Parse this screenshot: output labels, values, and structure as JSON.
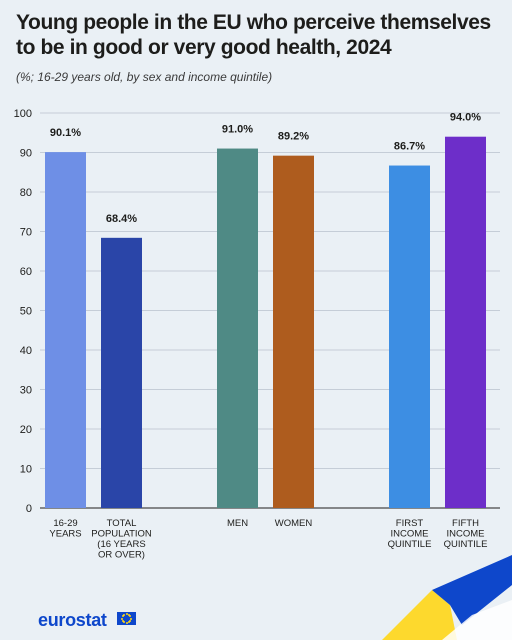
{
  "header": {
    "title": "Young people in the EU who perceive themselves to be in good or very good health, 2024",
    "subtitle": "(%; 16-29 years old, by sex and income quintile)"
  },
  "footer": {
    "logo_text": "eurostat"
  },
  "colors": {
    "gridline": "#b9c2cc",
    "axis": "#1d1d1b",
    "background": "#eaf0f5",
    "ribbon_yellow": "#ffd617",
    "ribbon_blue": "#0e47cb"
  },
  "chart_data": {
    "type": "bar",
    "title": "Young people in the EU who perceive themselves to be in good or very good health, 2024",
    "subtitle": "(%; 16-29 years old, by sex and income quintile)",
    "ylim": [
      0,
      100
    ],
    "yticks": [
      0,
      10,
      20,
      30,
      40,
      50,
      60,
      70,
      80,
      90,
      100
    ],
    "grid": true,
    "bars": [
      {
        "label": [
          "16-29",
          "YEARS"
        ],
        "value": 90.1,
        "value_label": "90.1%",
        "color": "#6e8fe6",
        "group": 0
      },
      {
        "label": [
          "TOTAL",
          "POPULATION",
          "(16 YEARS",
          "OR OVER)"
        ],
        "value": 68.4,
        "value_label": "68.4%",
        "color": "#2a45a8",
        "group": 0
      },
      {
        "label": [
          "MEN"
        ],
        "value": 91.0,
        "value_label": "91.0%",
        "color": "#4f8a85",
        "group": 1
      },
      {
        "label": [
          "WOMEN"
        ],
        "value": 89.2,
        "value_label": "89.2%",
        "color": "#ae5c1e",
        "group": 1
      },
      {
        "label": [
          "FIRST",
          "INCOME",
          "QUINTILE"
        ],
        "value": 86.7,
        "value_label": "86.7%",
        "color": "#3d8ee3",
        "group": 2
      },
      {
        "label": [
          "FIFTH",
          "INCOME",
          "QUINTILE"
        ],
        "value": 94.0,
        "value_label": "94.0%",
        "color": "#6d2ec9",
        "group": 2
      }
    ]
  }
}
